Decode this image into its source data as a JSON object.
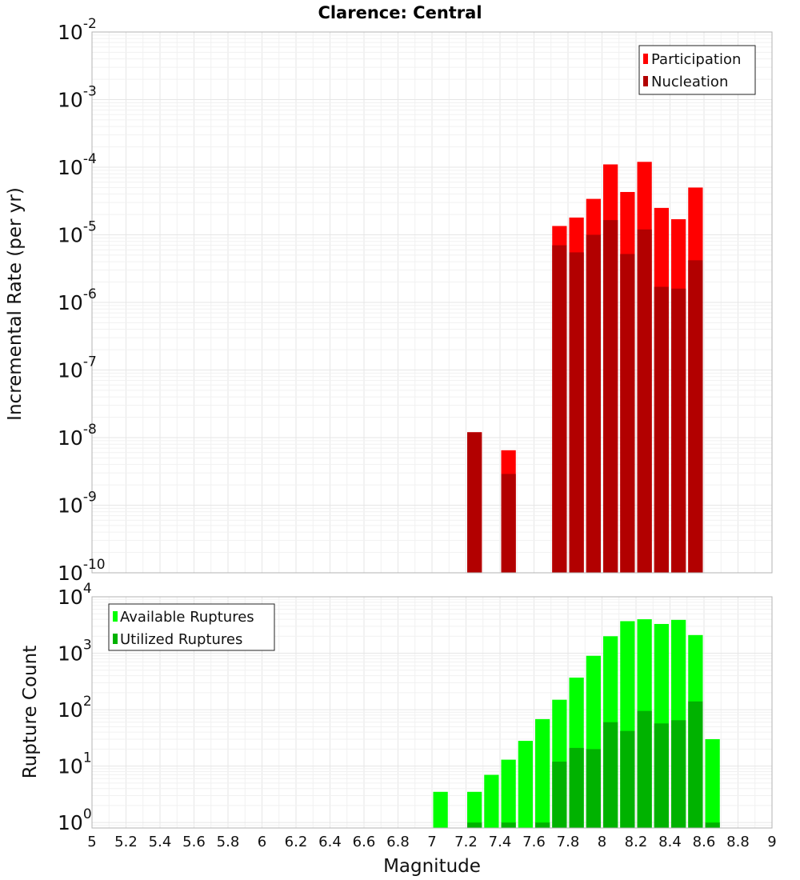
{
  "chart_data": [
    {
      "type": "bar",
      "title": "Clarence: Central",
      "xlabel": "",
      "ylabel": "Incremental Rate (per yr)",
      "yscale": "log",
      "ylim": [
        1e-10,
        0.01
      ],
      "xlim": [
        5,
        9
      ],
      "bar_width": 0.1,
      "grid": true,
      "legend_position": "top-right",
      "y_ticks": [
        {
          "base": "10",
          "exp": "-10"
        },
        {
          "base": "10",
          "exp": "-9"
        },
        {
          "base": "10",
          "exp": "-8"
        },
        {
          "base": "10",
          "exp": "-7"
        },
        {
          "base": "10",
          "exp": "-6"
        },
        {
          "base": "10",
          "exp": "-5"
        },
        {
          "base": "10",
          "exp": "-4"
        },
        {
          "base": "10",
          "exp": "-3"
        },
        {
          "base": "10",
          "exp": "-2"
        }
      ],
      "series": [
        {
          "name": "Participation",
          "color": "#ff0000",
          "points": [
            [
              7.25,
              1.2e-08
            ],
            [
              7.45,
              6.5e-09
            ],
            [
              7.75,
              1.35e-05
            ],
            [
              7.85,
              1.8e-05
            ],
            [
              7.95,
              3.4e-05
            ],
            [
              8.05,
              0.00011
            ],
            [
              8.15,
              4.3e-05
            ],
            [
              8.25,
              0.00012
            ],
            [
              8.35,
              2.5e-05
            ],
            [
              8.45,
              1.7e-05
            ],
            [
              8.55,
              5e-05
            ]
          ]
        },
        {
          "name": "Nucleation",
          "color": "#b20000",
          "points": [
            [
              7.25,
              1.2e-08
            ],
            [
              7.45,
              2.9e-09
            ],
            [
              7.75,
              7e-06
            ],
            [
              7.85,
              5.5e-06
            ],
            [
              7.95,
              1e-05
            ],
            [
              8.05,
              1.65e-05
            ],
            [
              8.15,
              5.2e-06
            ],
            [
              8.25,
              1.2e-05
            ],
            [
              8.35,
              1.7e-06
            ],
            [
              8.45,
              1.6e-06
            ],
            [
              8.55,
              4.2e-06
            ]
          ]
        }
      ]
    },
    {
      "type": "bar",
      "title": "",
      "xlabel": "Magnitude",
      "ylabel": "Rupture Count",
      "yscale": "log",
      "ylim": [
        0.8,
        10000
      ],
      "xlim": [
        5,
        9
      ],
      "bar_width": 0.1,
      "grid": true,
      "legend_position": "top-left",
      "x_ticks": [
        "5",
        "5.2",
        "5.4",
        "5.6",
        "5.8",
        "6",
        "6.2",
        "6.4",
        "6.6",
        "6.8",
        "7",
        "7.2",
        "7.4",
        "7.6",
        "7.8",
        "8",
        "8.2",
        "8.4",
        "8.6",
        "8.8",
        "9"
      ],
      "y_ticks": [
        {
          "base": "10",
          "exp": "0"
        },
        {
          "base": "10",
          "exp": "1"
        },
        {
          "base": "10",
          "exp": "2"
        },
        {
          "base": "10",
          "exp": "3"
        },
        {
          "base": "10",
          "exp": "4"
        }
      ],
      "series": [
        {
          "name": "Available Ruptures",
          "color": "#00ff00",
          "points": [
            [
              7.05,
              3.5
            ],
            [
              7.25,
              3.5
            ],
            [
              7.35,
              7
            ],
            [
              7.45,
              13
            ],
            [
              7.55,
              28
            ],
            [
              7.65,
              68
            ],
            [
              7.75,
              150
            ],
            [
              7.85,
              370
            ],
            [
              7.95,
              900
            ],
            [
              8.05,
              2000
            ],
            [
              8.15,
              3700
            ],
            [
              8.25,
              4000
            ],
            [
              8.35,
              3300
            ],
            [
              8.45,
              3900
            ],
            [
              8.55,
              2100
            ],
            [
              8.65,
              30
            ]
          ]
        },
        {
          "name": "Utilized Ruptures",
          "color": "#00b200",
          "points": [
            [
              7.25,
              1
            ],
            [
              7.45,
              1
            ],
            [
              7.65,
              1
            ],
            [
              7.75,
              12
            ],
            [
              7.85,
              21
            ],
            [
              7.95,
              20
            ],
            [
              8.05,
              60
            ],
            [
              8.15,
              42
            ],
            [
              8.25,
              95
            ],
            [
              8.35,
              57
            ],
            [
              8.45,
              65
            ],
            [
              8.55,
              140
            ],
            [
              8.65,
              1
            ]
          ]
        }
      ]
    }
  ]
}
